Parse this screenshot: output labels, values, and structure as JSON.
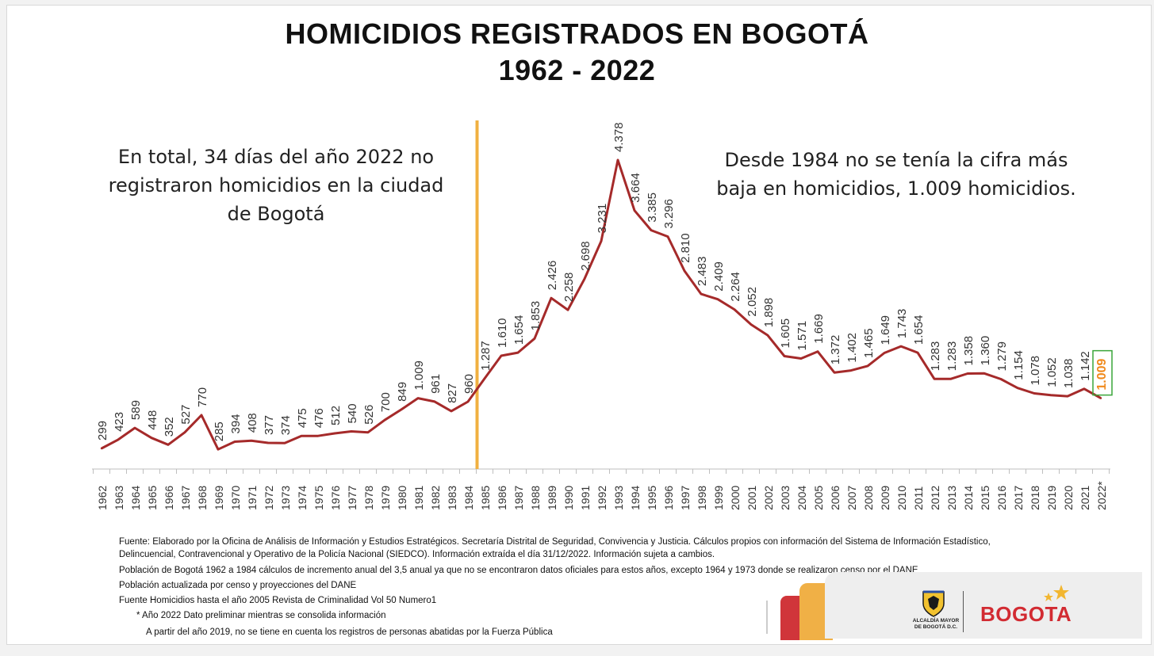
{
  "title_line1": "HOMICIDIOS REGISTRADOS EN BOGOTÁ",
  "title_line2": "1962 - 2022",
  "annotation_left": "En total, 34 días del año 2022 no registraron homicidios en la ciudad de Bogotá",
  "annotation_right": "Desde 1984 no se tenía la cifra más baja en homicidios, 1.009 homicidios.",
  "colors": {
    "line": "#a52a2a",
    "divider": "#f0b040",
    "highlight_box": "#3aa53a",
    "highlight_text": "#f08a1c"
  },
  "chart_data": {
    "type": "line",
    "title": "HOMICIDIOS REGISTRADOS EN BOGOTÁ 1962 - 2022",
    "categories": [
      "1962",
      "1963",
      "1964",
      "1965",
      "1966",
      "1967",
      "1968",
      "1969",
      "1970",
      "1971",
      "1972",
      "1973",
      "1974",
      "1975",
      "1976",
      "1977",
      "1978",
      "1979",
      "1980",
      "1981",
      "1982",
      "1983",
      "1984",
      "1985",
      "1986",
      "1987",
      "1988",
      "1989",
      "1990",
      "1991",
      "1992",
      "1993",
      "1994",
      "1995",
      "1996",
      "1997",
      "1998",
      "1999",
      "2000",
      "2001",
      "2002",
      "2003",
      "2004",
      "2005",
      "2006",
      "2007",
      "2008",
      "2009",
      "2010",
      "2011",
      "2012",
      "2013",
      "2014",
      "2015",
      "2016",
      "2017",
      "2018",
      "2019",
      "2020",
      "2021",
      "2022*"
    ],
    "series": [
      {
        "values": [
          299,
          423,
          589,
          448,
          352,
          527,
          770,
          285,
          394,
          408,
          377,
          374,
          475,
          476,
          512,
          540,
          526,
          700,
          849,
          1009,
          961,
          827,
          960,
          1287,
          1610,
          1654,
          1853,
          2426,
          2258,
          2698,
          3231,
          4378,
          3664,
          3385,
          3296,
          2810,
          2483,
          2409,
          2264,
          2052,
          1898,
          1605,
          1571,
          1669,
          1372,
          1402,
          1465,
          1649,
          1743,
          1654,
          1283,
          1283,
          1358,
          1360,
          1279,
          1154,
          1078,
          1052,
          1038,
          1142,
          1009
        ]
      }
    ],
    "data_labels": [
      "299",
      "423",
      "589",
      "448",
      "352",
      "527",
      "770",
      "285",
      "394",
      "408",
      "377",
      "374",
      "475",
      "476",
      "512",
      "540",
      "526",
      "700",
      "849",
      "1.009",
      "961",
      "827",
      "960",
      "1.287",
      "1.610",
      "1.654",
      "1.853",
      "2.426",
      "2.258",
      "2.698",
      "3.231",
      "4.378",
      "3.664",
      "3.385",
      "3.296",
      "2.810",
      "2.483",
      "2.409",
      "2.264",
      "2.052",
      "1.898",
      "1.605",
      "1.571",
      "1.669",
      "1.372",
      "1.402",
      "1.465",
      "1.649",
      "1.743",
      "1.654",
      "1.283",
      "1.283",
      "1.358",
      "1.360",
      "1.279",
      "1.154",
      "1.078",
      "1.052",
      "1.038",
      "1.142",
      "1.009"
    ],
    "highlight_index": 60,
    "divider_after": "1984",
    "xlabel": "",
    "ylabel": "",
    "ylim": [
      0,
      4500
    ],
    "grid": false,
    "legend": "none"
  },
  "footnotes": [
    "Fuente: Elaborado por la Oficina de Análisis de Información y Estudios Estratégicos. Secretaría Distrital de Seguridad, Convivencia y Justicia. Cálculos propios con información del Sistema de Información Estadístico,",
    "Delincuencial, Contravencional y Operativo de la Policía Nacional  (SIEDCO). Información extraída el día  31/12/2022. Información sujeta a cambios.",
    "Población de Bogotá 1962 a 1984 cálculos de incremento anual del 3,5 anual ya que no se encontraron datos oficiales para estos años, excepto 1964 y 1973 donde se realizaron censo por el DANE",
    "Población actualizada por censo y proyecciones del DANE",
    "Fuente Homicidios hasta el año 2005 Revista de Criminalidad Vol 50 Numero1",
    "* Año 2022 Dato preliminar mientras se consolida información",
    "A partir del año 2019, no se tiene en cuenta los registros de personas abatidas por la Fuerza Pública"
  ],
  "logo": {
    "alcaldia_line1": "ALCALDÍA MAYOR",
    "alcaldia_line2": "DE BOGOTÁ D.C.",
    "brand": "BOGOTA"
  }
}
